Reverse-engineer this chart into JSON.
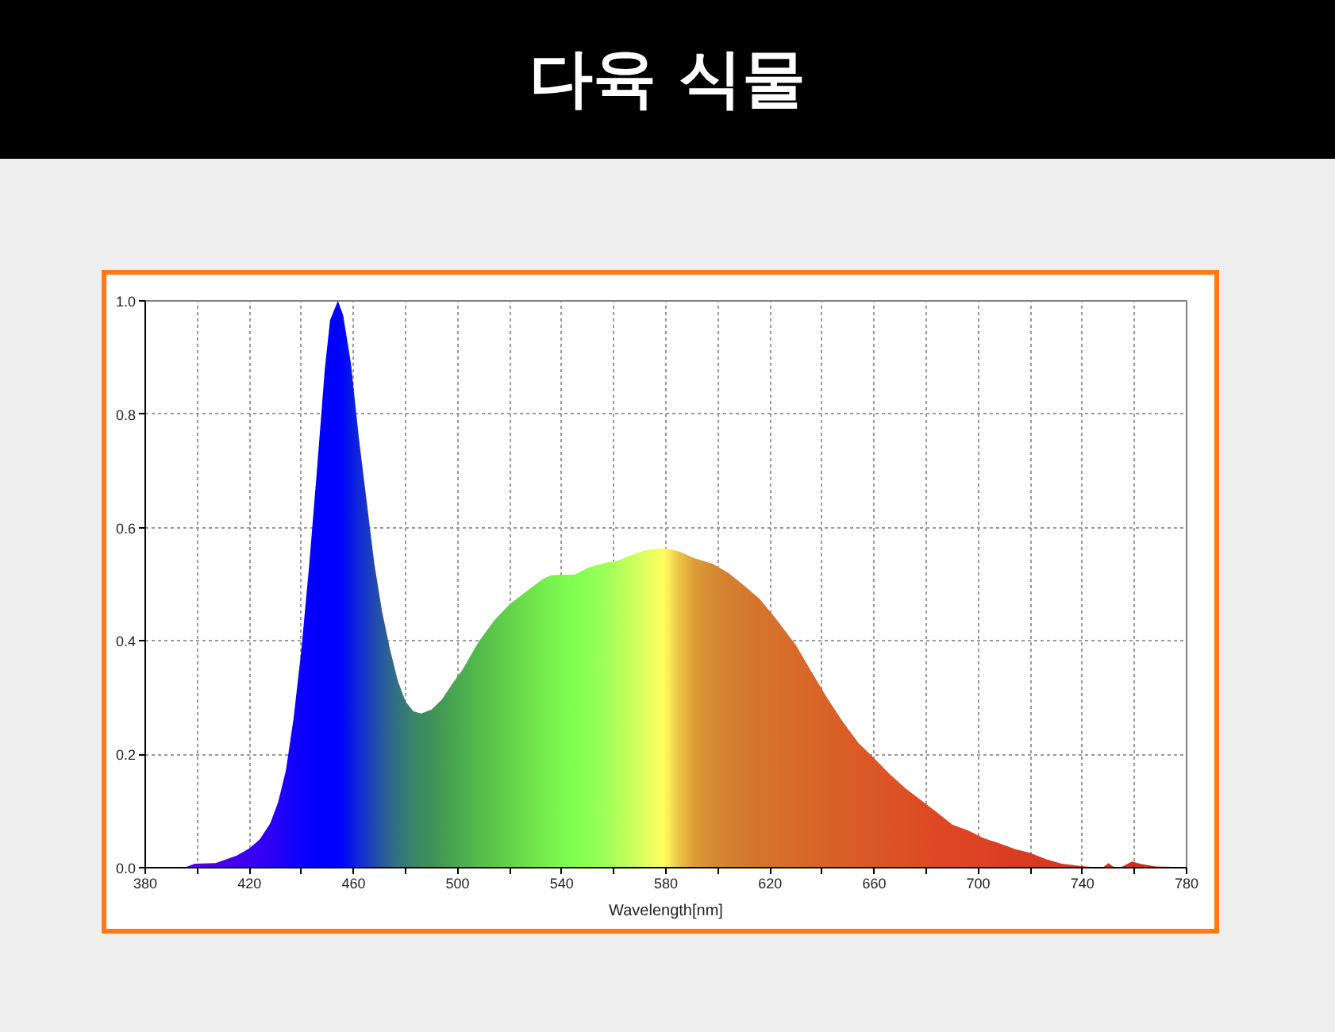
{
  "chart_data": {
    "type": "area",
    "title": "다육 식물",
    "xlabel": "Wavelength[nm]",
    "x": [
      395,
      399,
      407,
      415,
      420,
      424,
      428,
      431,
      434,
      437,
      440,
      443,
      446,
      449,
      451,
      454,
      456,
      459,
      462,
      465,
      468,
      471,
      474,
      477,
      480,
      483,
      486,
      490,
      494,
      498,
      502,
      508,
      514,
      520,
      526,
      533,
      536,
      545,
      550,
      557,
      561,
      566,
      572,
      579,
      585,
      591,
      598,
      604,
      610,
      616,
      622,
      630,
      636,
      642,
      648,
      654,
      660,
      666,
      672,
      678,
      684,
      690,
      696,
      702,
      708,
      714,
      720,
      726,
      732,
      739,
      744,
      748,
      750,
      752,
      755,
      759,
      762,
      768,
      778
    ],
    "values": [
      0,
      0.007,
      0.008,
      0.021,
      0.034,
      0.05,
      0.078,
      0.115,
      0.171,
      0.264,
      0.386,
      0.535,
      0.704,
      0.881,
      0.966,
      1.0,
      0.975,
      0.89,
      0.76,
      0.648,
      0.536,
      0.451,
      0.386,
      0.33,
      0.293,
      0.276,
      0.272,
      0.279,
      0.297,
      0.325,
      0.35,
      0.398,
      0.436,
      0.465,
      0.486,
      0.51,
      0.516,
      0.517,
      0.529,
      0.538,
      0.541,
      0.55,
      0.56,
      0.564,
      0.558,
      0.546,
      0.536,
      0.52,
      0.498,
      0.474,
      0.441,
      0.392,
      0.345,
      0.299,
      0.257,
      0.22,
      0.193,
      0.165,
      0.14,
      0.119,
      0.098,
      0.076,
      0.066,
      0.052,
      0.043,
      0.033,
      0.026,
      0.015,
      0.007,
      0.003,
      0.001,
      0.001,
      0.008,
      0.001,
      0.001,
      0.011,
      0.007,
      0.002,
      0.001
    ],
    "colors": [
      "#5800e0",
      "#5400e4",
      "#4c00e8",
      "#4400ec",
      "#3c00f0",
      "#3400f2",
      "#2c00f4",
      "#2400f6",
      "#1c00f8",
      "#1400fa",
      "#0c00fc",
      "#0600fe",
      "#0000ff",
      "#0000ff",
      "#0000ff",
      "#0000ff",
      "#0008f8",
      "#0818e8",
      "#1028d8",
      "#1838c4",
      "#2048b0",
      "#2858a0",
      "#2e6690",
      "#337280",
      "#367c74",
      "#3a846a",
      "#3c8a62",
      "#409058",
      "#449a54",
      "#48a450",
      "#4cae4e",
      "#54ba4c",
      "#5cc64a",
      "#64d24a",
      "#6cde4a",
      "#74ec4c",
      "#78f24e",
      "#80ff50",
      "#8cff54",
      "#a0ff58",
      "#b0ff5a",
      "#c4ff5c",
      "#e0ff5e",
      "#ffff60",
      "#ecc448",
      "#dc9c38",
      "#d68a32",
      "#d4802e",
      "#d47a2e",
      "#d5742c",
      "#d6702c",
      "#d76a2a",
      "#d86628",
      "#d86228",
      "#d95e26",
      "#da5a26",
      "#da5626",
      "#db5224",
      "#db5024",
      "#dc4c24",
      "#dc4824",
      "#dc4624",
      "#dc4424",
      "#dc4224",
      "#da3e22",
      "#da3c22",
      "#d83a22",
      "#d83822",
      "#d83622",
      "#d83420",
      "#d43220",
      "#d43020",
      "#d43020",
      "#d02e20",
      "#d02e20",
      "#d02e20",
      "#d02c20",
      "#d02c20",
      "#cc2a20"
    ],
    "xlim": [
      380,
      780
    ],
    "ylim": [
      0,
      1
    ],
    "xticks": [
      380,
      {
        "value": 400,
        "label": null
      },
      420,
      {
        "value": 440,
        "label": null
      },
      460,
      {
        "value": 480,
        "label": null
      },
      500,
      {
        "value": 520,
        "label": null
      },
      540,
      {
        "value": 560,
        "label": null
      },
      580,
      {
        "value": 600,
        "label": null
      },
      620,
      {
        "value": 640,
        "label": null
      },
      660,
      {
        "value": 680,
        "label": null
      },
      700,
      {
        "value": 720,
        "label": null
      },
      740,
      {
        "value": 760,
        "label": null
      },
      780
    ],
    "yticks": [
      {
        "value": 0,
        "label": "0.0"
      },
      {
        "value": 0.2,
        "label": "0.2"
      },
      {
        "value": 0.4,
        "label": "0.4"
      },
      {
        "value": 0.6,
        "label": "0.6"
      },
      {
        "value": 0.8,
        "label": "0.8"
      },
      {
        "value": 1,
        "label": "1.0"
      }
    ],
    "grid": true
  }
}
